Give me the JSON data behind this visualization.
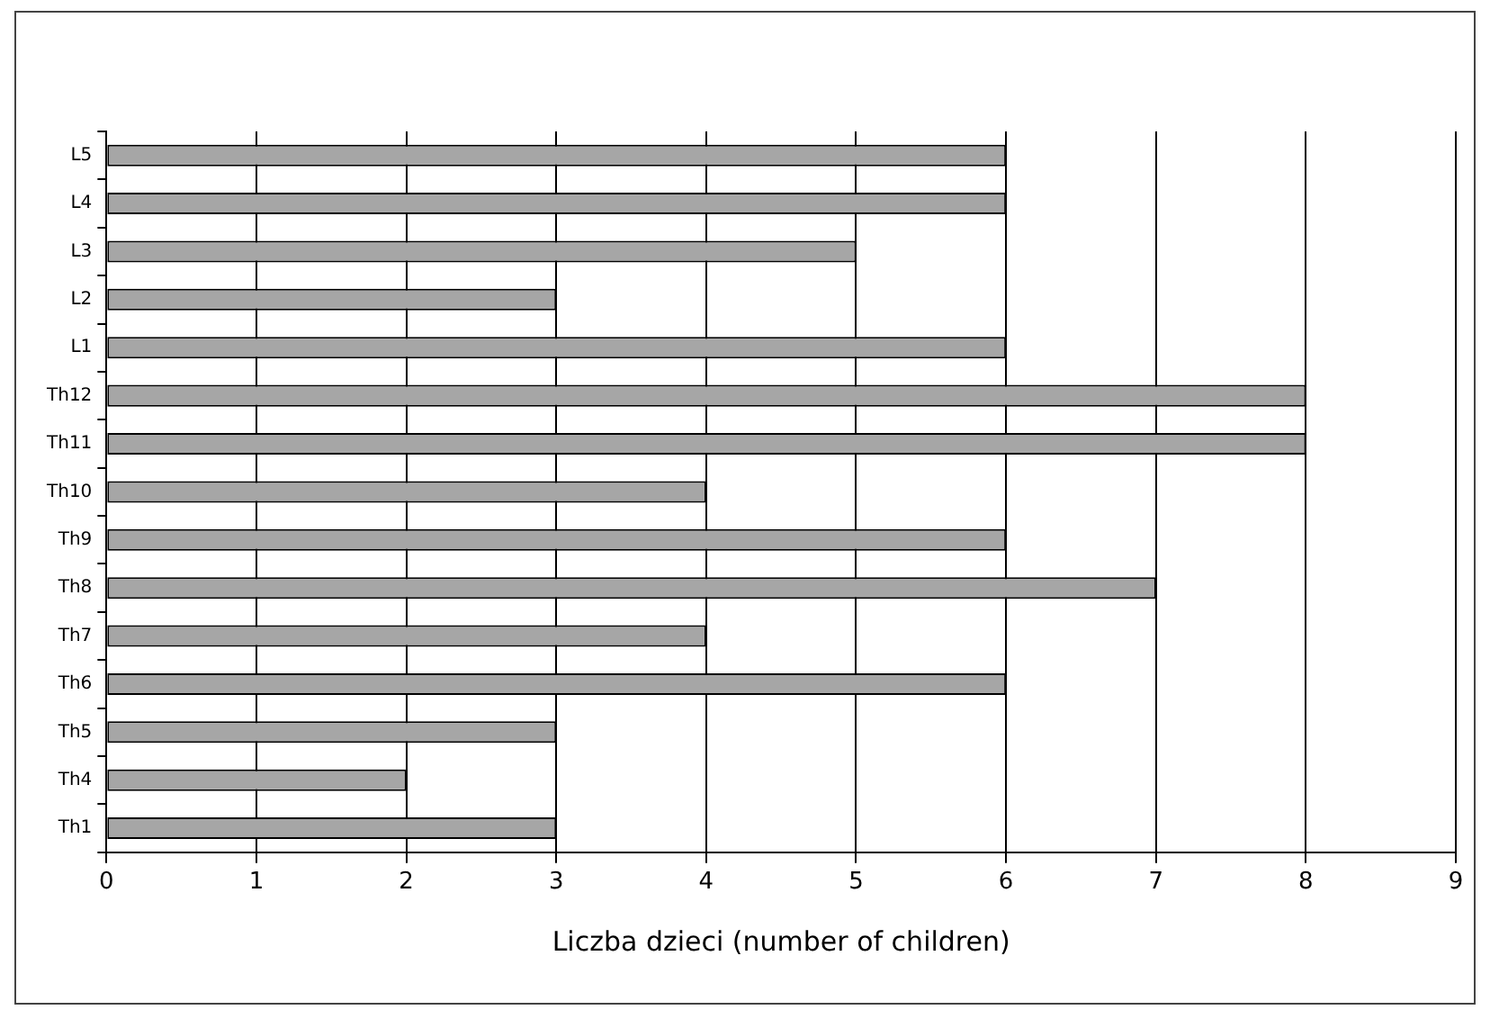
{
  "chart_data": {
    "type": "bar",
    "orientation": "horizontal",
    "xlabel": "Liczba dzieci (number of children)",
    "categories": [
      "L5",
      "L4",
      "L3",
      "L2",
      "L1",
      "Th12",
      "Th11",
      "Th10",
      "Th9",
      "Th8",
      "Th7",
      "Th6",
      "Th5",
      "Th4",
      "Th1"
    ],
    "values": [
      6,
      6,
      5,
      3,
      6,
      8,
      8,
      4,
      6,
      7,
      4,
      6,
      3,
      2,
      3
    ],
    "color": "#a6a6a6",
    "xlim": [
      0,
      9
    ],
    "xticks": [
      0,
      1,
      2,
      3,
      4,
      5,
      6,
      7,
      8,
      9
    ],
    "grid": "x",
    "legend": false
  }
}
